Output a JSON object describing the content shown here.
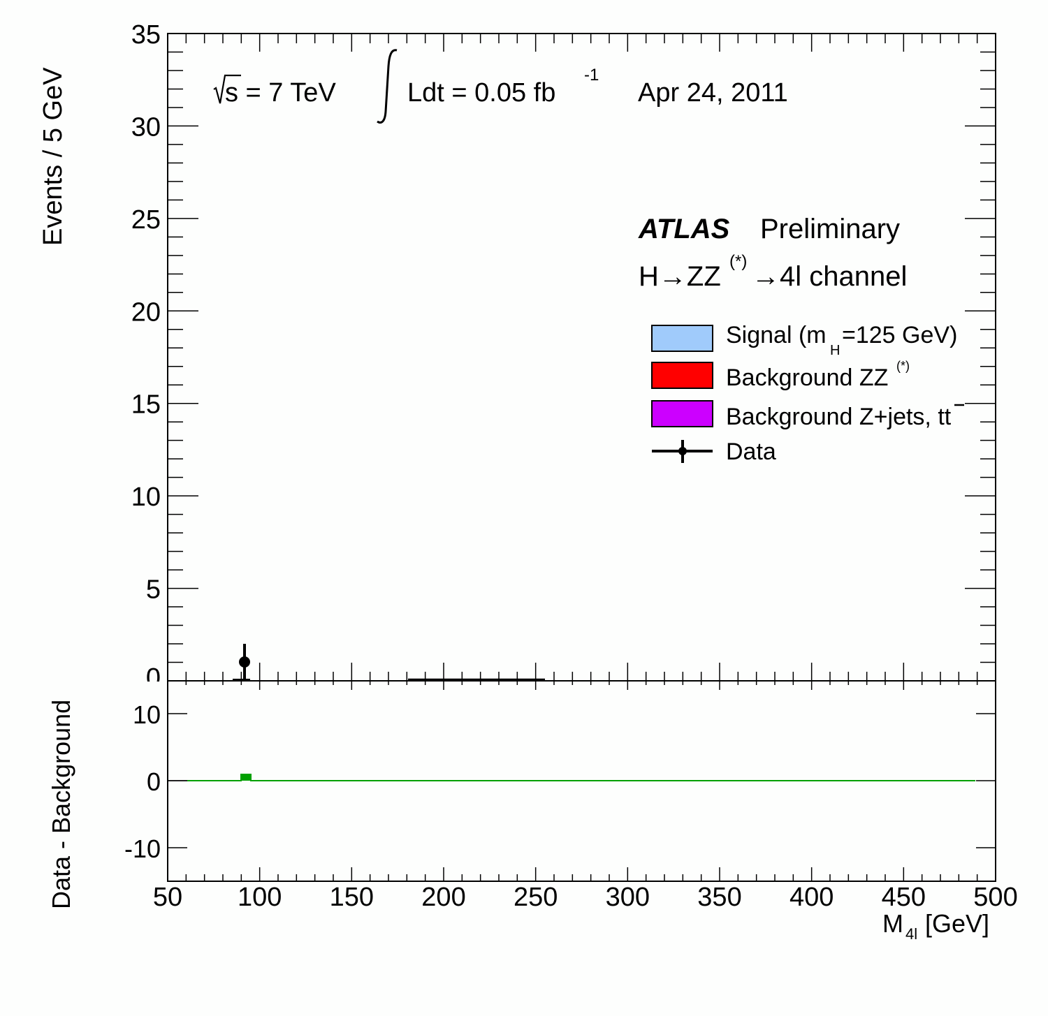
{
  "chart_data": [
    {
      "panel": "main",
      "type": "bar",
      "title": "",
      "xlabel": "M_4l [GeV]",
      "ylabel": "Events / 5 GeV",
      "xlim": [
        50,
        500
      ],
      "ylim": [
        0,
        35
      ],
      "x_ticks": [
        50,
        100,
        150,
        200,
        250,
        300,
        350,
        400,
        450,
        500
      ],
      "y_ticks": [
        0,
        5,
        10,
        15,
        20,
        25,
        30,
        35
      ],
      "bin_width": 5,
      "series": [
        {
          "name": "Signal (m_H=125 GeV)",
          "color": "#a0cbfb",
          "values": []
        },
        {
          "name": "Background ZZ(*)",
          "color": "#ff0000",
          "values": []
        },
        {
          "name": "Background Z+jets, tt̄",
          "color": "#cc00ff",
          "values": []
        },
        {
          "name": "Data",
          "color": "#000000",
          "type": "points",
          "points": [
            {
              "x": 92.5,
              "y": 1,
              "yerr_low": 1,
              "yerr_high": 1
            }
          ]
        }
      ],
      "annotations": [
        "√s = 7 TeV",
        "∫Ldt = 0.05 fb⁻¹",
        "Apr 24, 2011",
        "ATLAS Preliminary",
        "H→ZZ(*)→4l channel"
      ],
      "legend_position": "upper-right",
      "grid": false
    },
    {
      "panel": "residual",
      "type": "bar",
      "xlabel": "M_4l [GeV]",
      "ylabel": "Data - Background",
      "xlim": [
        50,
        500
      ],
      "ylim": [
        -15,
        15
      ],
      "y_ticks": [
        -10,
        0,
        10
      ],
      "series": [
        {
          "name": "Data - Background",
          "color": "#00a000",
          "bins": [
            {
              "x_low": 90,
              "x_high": 95,
              "value": 1
            }
          ]
        }
      ]
    }
  ],
  "labels": {
    "ylabel_main": "Events / 5 GeV",
    "ylabel_residual": "Data - Background",
    "xlabel_main": "M",
    "xlabel_sub": "4l",
    "xlabel_unit": "[GeV]",
    "sqrt_s": "s = 7 TeV",
    "lumi": "Ldt = 0.05 fb",
    "lumi_exp": "-1",
    "date": "Apr 24, 2011",
    "atlas": "ATLAS",
    "preliminary": "Preliminary",
    "channel_h": "H→ZZ",
    "channel_star": "(*)",
    "channel_rest": "→4l channel"
  },
  "legend": {
    "signal_a": "Signal (m",
    "signal_sub": "H",
    "signal_b": "=125 GeV)",
    "zz": "Background ZZ",
    "zz_star": "(*)",
    "zjets": "Background Z+jets, tt",
    "data": "Data",
    "colors": {
      "signal": "#a0cbfb",
      "zz": "#ff0000",
      "zjets": "#cc00ff",
      "residual": "#00a000"
    }
  },
  "ticks": {
    "x": [
      "50",
      "100",
      "150",
      "200",
      "250",
      "300",
      "350",
      "400",
      "450",
      "500"
    ],
    "y_main": [
      "0",
      "5",
      "10",
      "15",
      "20",
      "25",
      "30",
      "35"
    ],
    "y_res": [
      "10",
      "0",
      "-10"
    ]
  }
}
